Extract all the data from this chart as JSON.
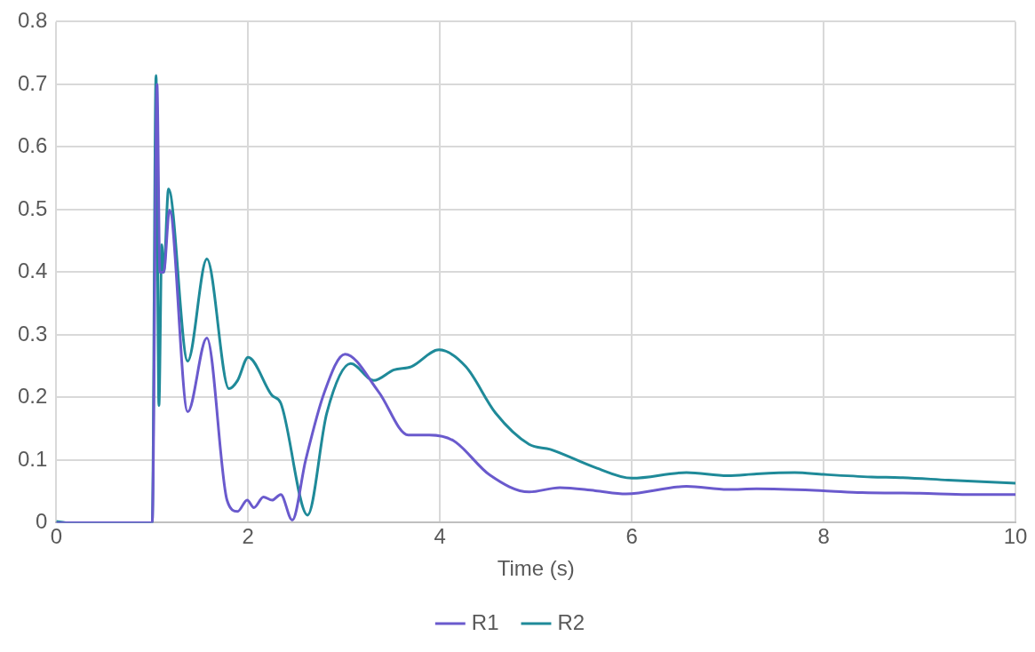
{
  "chart_data": {
    "type": "line",
    "xlabel": "Time (s)",
    "xlim": [
      0,
      10
    ],
    "xticks": [
      0,
      2,
      4,
      6,
      8,
      10
    ],
    "ylim": [
      0,
      0.8
    ],
    "yticks": [
      0,
      0.1,
      0.2,
      0.3,
      0.4,
      0.5,
      0.6,
      0.7,
      0.8
    ],
    "grid": true,
    "legend": "bottom",
    "marker": "none",
    "series": [
      {
        "name": "R1",
        "color": "#6a5acd",
        "x": [
          0,
          1.0,
          1.05,
          1.08,
          1.12,
          1.18,
          1.37,
          1.57,
          1.78,
          1.89,
          1.99,
          2.06,
          2.16,
          2.25,
          2.34,
          2.46,
          2.6,
          2.79,
          3.01,
          3.36,
          3.67,
          3.89,
          4.14,
          4.52,
          4.93,
          5.25,
          5.62,
          5.94,
          6.57,
          7.0,
          7.3,
          8.0,
          8.4,
          9.0,
          9.5,
          10
        ],
        "values": [
          0,
          0,
          0.7,
          0.4,
          0.4,
          0.499,
          0.177,
          0.295,
          0.036,
          0.018,
          0.036,
          0.024,
          0.041,
          0.036,
          0.045,
          0.004,
          0.1,
          0.206,
          0.269,
          0.209,
          0.14,
          0.14,
          0.131,
          0.076,
          0.049,
          0.056,
          0.051,
          0.046,
          0.058,
          0.053,
          0.054,
          0.051,
          0.048,
          0.047,
          0.045,
          0.045
        ]
      },
      {
        "name": "R2",
        "color": "#1f8a99",
        "x": [
          0,
          0.1,
          1.0,
          1.04,
          1.07,
          1.1,
          1.12,
          1.17,
          1.37,
          1.57,
          1.8,
          1.89,
          2.0,
          2.25,
          2.34,
          2.62,
          2.82,
          3.07,
          3.31,
          3.52,
          3.7,
          3.99,
          4.27,
          4.58,
          4.93,
          5.15,
          5.62,
          6.0,
          6.57,
          7.0,
          7.3,
          7.7,
          8.0,
          8.5,
          8.8,
          9.3,
          9.7,
          10
        ],
        "values": [
          0.002,
          0,
          0,
          0.714,
          0.187,
          0.444,
          0.4,
          0.533,
          0.258,
          0.421,
          0.214,
          0.227,
          0.264,
          0.203,
          0.191,
          0.012,
          0.175,
          0.254,
          0.227,
          0.244,
          0.249,
          0.276,
          0.249,
          0.175,
          0.125,
          0.117,
          0.088,
          0.071,
          0.08,
          0.075,
          0.078,
          0.08,
          0.077,
          0.073,
          0.072,
          0.068,
          0.065,
          0.063
        ]
      }
    ]
  }
}
